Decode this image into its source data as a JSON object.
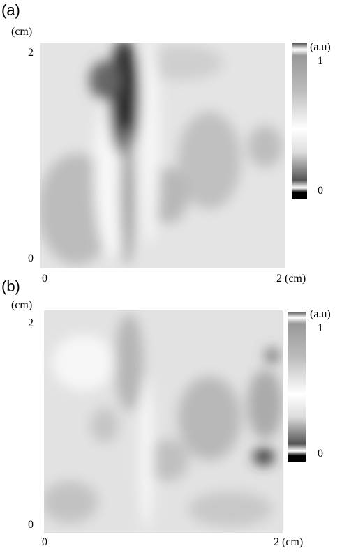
{
  "panels": [
    {
      "label": "(a)",
      "y_unit": "(cm)",
      "y_top": "2",
      "y_bottom": "0",
      "x_left": "0",
      "x_right": "2 (cm)",
      "bar_unit": "(a.u)",
      "bar_top": "1",
      "bar_bottom": "0"
    },
    {
      "label": "(b)",
      "y_unit": "(cm)",
      "y_top": "2",
      "y_bottom": "0",
      "x_left": "0",
      "x_right": "2 (cm)",
      "bar_unit": "(a.u)",
      "bar_top": "1",
      "bar_bottom": "0"
    }
  ]
}
